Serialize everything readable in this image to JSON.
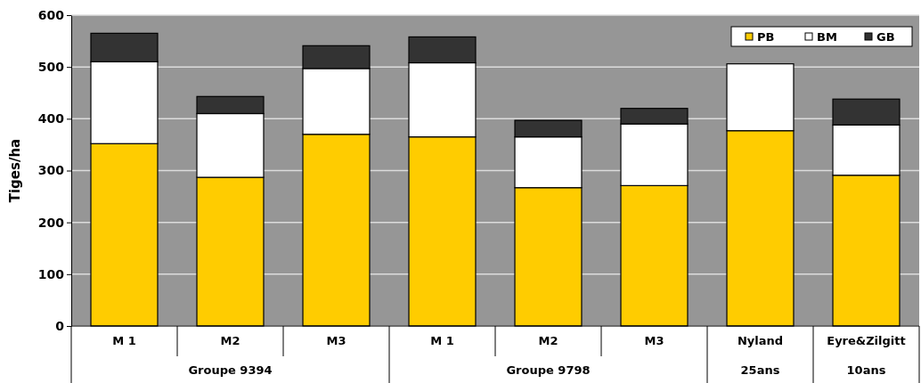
{
  "chart_data": {
    "type": "bar",
    "stacked": true,
    "ylabel": "Tiges/ha",
    "categories": [
      "M 1",
      "M2",
      "M3",
      "M 1",
      "M2",
      "M3",
      "Nyland\n25ans",
      "Eyre&Zilgitt\n10ans"
    ],
    "series": [
      {
        "name": "PB",
        "color": "#ffcc00",
        "values": [
          352,
          287,
          370,
          365,
          267,
          271,
          377,
          291
        ]
      },
      {
        "name": "BM",
        "color": "#ffffff",
        "values": [
          158,
          123,
          127,
          143,
          98,
          119,
          129,
          97
        ]
      },
      {
        "name": "GB",
        "color": "#333333",
        "values": [
          55,
          33,
          44,
          50,
          32,
          30,
          null,
          50
        ]
      }
    ],
    "annotations": [
      "Groupe 9394",
      "Groupe 9798"
    ],
    "ylim": [
      0,
      600
    ],
    "yticks": [
      0,
      100,
      200,
      300,
      400,
      500,
      600
    ],
    "grid": "y",
    "legend": "top right"
  }
}
